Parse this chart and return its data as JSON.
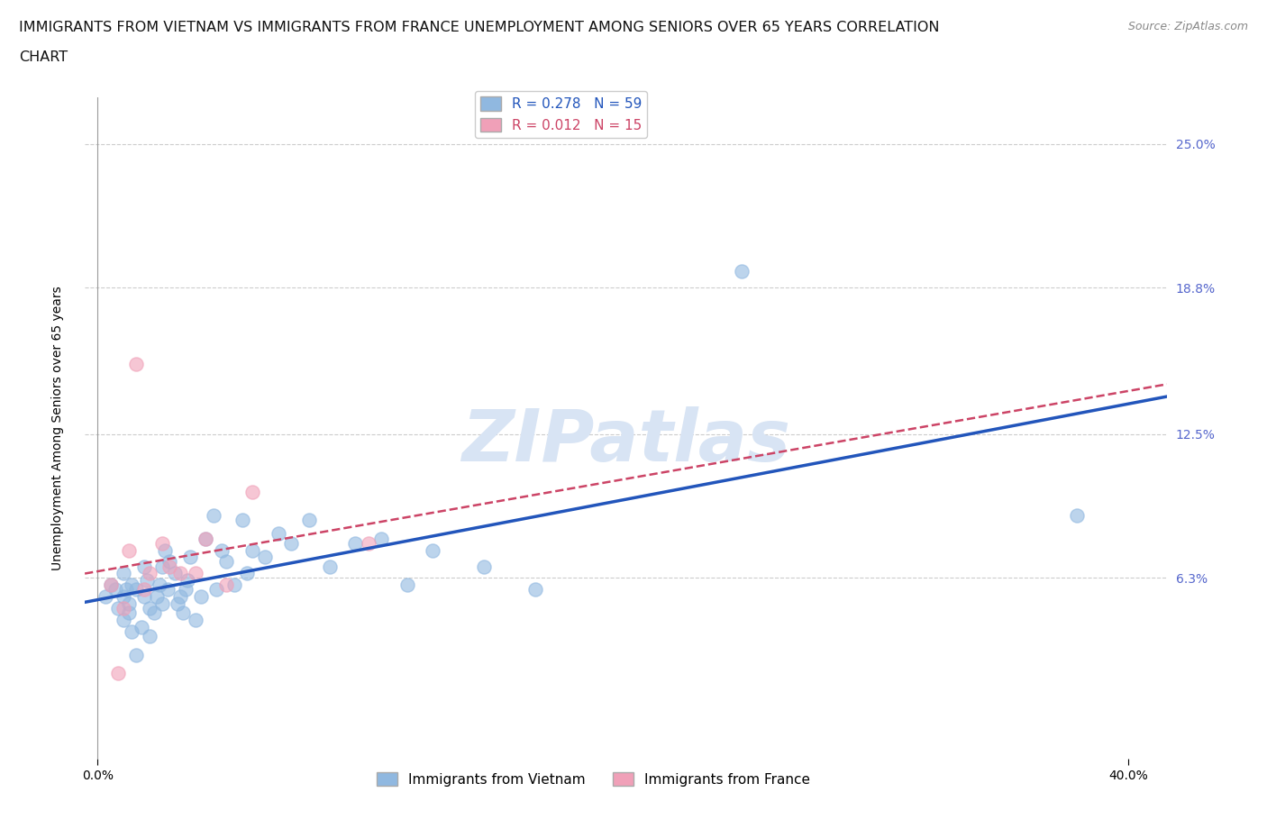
{
  "title_line1": "IMMIGRANTS FROM VIETNAM VS IMMIGRANTS FROM FRANCE UNEMPLOYMENT AMONG SENIORS OVER 65 YEARS CORRELATION",
  "title_line2": "CHART",
  "source": "Source: ZipAtlas.com",
  "ylabel": "Unemployment Among Seniors over 65 years",
  "ytick_labels": [
    "6.3%",
    "12.5%",
    "18.8%",
    "25.0%"
  ],
  "ytick_values": [
    0.063,
    0.125,
    0.188,
    0.25
  ],
  "xtick_labels": [
    "0.0%",
    "40.0%"
  ],
  "xtick_values": [
    0.0,
    0.4
  ],
  "xlim": [
    -0.005,
    0.415
  ],
  "ylim": [
    -0.015,
    0.27
  ],
  "r_vietnam": 0.278,
  "n_vietnam": 59,
  "r_france": 0.012,
  "n_france": 15,
  "color_vietnam": "#90b8e0",
  "color_france": "#f0a0b8",
  "color_vietnam_line": "#2255bb",
  "color_france_line": "#cc4466",
  "background_color": "#ffffff",
  "watermark": "ZIPatlas",
  "watermark_color": "#d8e4f4",
  "vietnam_x": [
    0.003,
    0.005,
    0.007,
    0.008,
    0.01,
    0.01,
    0.01,
    0.011,
    0.012,
    0.012,
    0.013,
    0.013,
    0.015,
    0.015,
    0.017,
    0.018,
    0.018,
    0.019,
    0.02,
    0.02,
    0.022,
    0.023,
    0.024,
    0.025,
    0.025,
    0.026,
    0.027,
    0.028,
    0.03,
    0.031,
    0.032,
    0.033,
    0.034,
    0.035,
    0.036,
    0.038,
    0.04,
    0.042,
    0.045,
    0.046,
    0.048,
    0.05,
    0.053,
    0.056,
    0.058,
    0.06,
    0.065,
    0.07,
    0.075,
    0.082,
    0.09,
    0.1,
    0.11,
    0.12,
    0.13,
    0.15,
    0.17,
    0.25,
    0.38
  ],
  "vietnam_y": [
    0.055,
    0.06,
    0.058,
    0.05,
    0.065,
    0.055,
    0.045,
    0.058,
    0.052,
    0.048,
    0.06,
    0.04,
    0.03,
    0.058,
    0.042,
    0.055,
    0.068,
    0.062,
    0.038,
    0.05,
    0.048,
    0.055,
    0.06,
    0.052,
    0.068,
    0.075,
    0.058,
    0.07,
    0.065,
    0.052,
    0.055,
    0.048,
    0.058,
    0.062,
    0.072,
    0.045,
    0.055,
    0.08,
    0.09,
    0.058,
    0.075,
    0.07,
    0.06,
    0.088,
    0.065,
    0.075,
    0.072,
    0.082,
    0.078,
    0.088,
    0.068,
    0.078,
    0.08,
    0.06,
    0.075,
    0.068,
    0.058,
    0.195,
    0.09
  ],
  "france_x": [
    0.005,
    0.008,
    0.01,
    0.012,
    0.015,
    0.018,
    0.02,
    0.025,
    0.028,
    0.032,
    0.038,
    0.042,
    0.05,
    0.06,
    0.105
  ],
  "france_y": [
    0.06,
    0.022,
    0.05,
    0.075,
    0.155,
    0.058,
    0.065,
    0.078,
    0.068,
    0.065,
    0.065,
    0.08,
    0.06,
    0.1,
    0.078
  ],
  "grid_color": "#cccccc",
  "title_fontsize": 11.5,
  "axis_label_fontsize": 10,
  "tick_fontsize": 10,
  "legend_fontsize": 11
}
